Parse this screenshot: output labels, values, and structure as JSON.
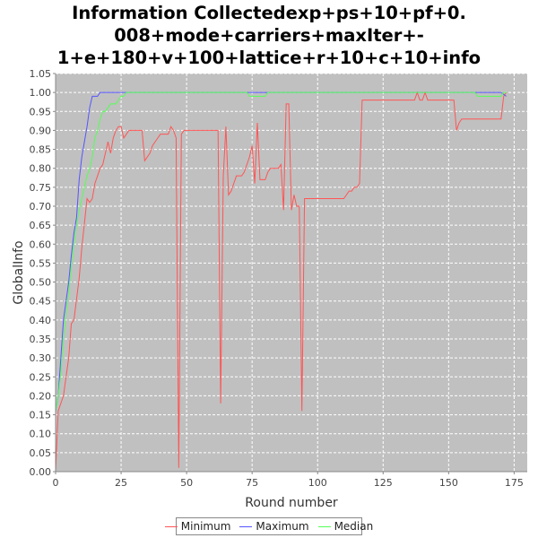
{
  "chart_data": {
    "type": "line",
    "title_lines": [
      "Information Collectedexp+ps+10+pf+0.",
      "008+mode+carriers+maxIter+-",
      "1+e+180+v+100+lattice+r+10+c+10+info"
    ],
    "xlabel": "Round number",
    "ylabel": "GlobalInfo",
    "xlim": [
      0,
      180
    ],
    "ylim": [
      0,
      1.05
    ],
    "x_ticks": [
      "0",
      "25",
      "50",
      "75",
      "100",
      "125",
      "150",
      "175"
    ],
    "y_ticks": [
      "0.00",
      "0.05",
      "0.10",
      "0.15",
      "0.20",
      "0.25",
      "0.30",
      "0.35",
      "0.40",
      "0.45",
      "0.50",
      "0.55",
      "0.60",
      "0.65",
      "0.70",
      "0.75",
      "0.80",
      "0.85",
      "0.90",
      "0.95",
      "1.00",
      "1.05"
    ],
    "grid": true,
    "legend_position": "bottom",
    "background": "#c0c0c0",
    "series": [
      {
        "name": "Minimum",
        "color": "#ff5555",
        "points": [
          [
            0,
            0.0
          ],
          [
            1,
            0.16
          ],
          [
            3,
            0.2
          ],
          [
            5,
            0.3
          ],
          [
            6,
            0.39
          ],
          [
            7,
            0.4
          ],
          [
            9,
            0.51
          ],
          [
            10,
            0.59
          ],
          [
            12,
            0.72
          ],
          [
            13,
            0.71
          ],
          [
            14,
            0.72
          ],
          [
            15,
            0.76
          ],
          [
            16,
            0.78
          ],
          [
            17,
            0.8
          ],
          [
            18,
            0.81
          ],
          [
            19,
            0.84
          ],
          [
            20,
            0.87
          ],
          [
            21,
            0.84
          ],
          [
            22,
            0.88
          ],
          [
            23,
            0.9
          ],
          [
            24,
            0.91
          ],
          [
            25,
            0.91
          ],
          [
            26,
            0.88
          ],
          [
            27,
            0.89
          ],
          [
            28,
            0.9
          ],
          [
            30,
            0.9
          ],
          [
            32,
            0.9
          ],
          [
            33,
            0.9
          ],
          [
            34,
            0.82
          ],
          [
            36,
            0.84
          ],
          [
            37,
            0.86
          ],
          [
            38,
            0.87
          ],
          [
            39,
            0.88
          ],
          [
            40,
            0.89
          ],
          [
            42,
            0.89
          ],
          [
            43,
            0.89
          ],
          [
            44,
            0.91
          ],
          [
            45,
            0.9
          ],
          [
            46,
            0.88
          ],
          [
            47,
            0.01
          ],
          [
            48,
            0.89
          ],
          [
            49,
            0.9
          ],
          [
            52,
            0.9
          ],
          [
            55,
            0.9
          ],
          [
            58,
            0.9
          ],
          [
            60,
            0.9
          ],
          [
            62,
            0.9
          ],
          [
            63,
            0.18
          ],
          [
            64,
            0.78
          ],
          [
            65,
            0.91
          ],
          [
            66,
            0.73
          ],
          [
            67,
            0.74
          ],
          [
            68,
            0.76
          ],
          [
            69,
            0.78
          ],
          [
            70,
            0.78
          ],
          [
            71,
            0.78
          ],
          [
            72,
            0.79
          ],
          [
            73,
            0.81
          ],
          [
            74,
            0.83
          ],
          [
            75,
            0.86
          ],
          [
            76,
            0.76
          ],
          [
            77,
            0.92
          ],
          [
            78,
            0.77
          ],
          [
            79,
            0.77
          ],
          [
            80,
            0.77
          ],
          [
            81,
            0.79
          ],
          [
            82,
            0.8
          ],
          [
            83,
            0.8
          ],
          [
            84,
            0.8
          ],
          [
            85,
            0.8
          ],
          [
            86,
            0.81
          ],
          [
            87,
            0.69
          ],
          [
            88,
            0.97
          ],
          [
            89,
            0.97
          ],
          [
            90,
            0.69
          ],
          [
            91,
            0.73
          ],
          [
            92,
            0.7
          ],
          [
            93,
            0.7
          ],
          [
            94,
            0.16
          ],
          [
            95,
            0.72
          ],
          [
            96,
            0.72
          ],
          [
            100,
            0.72
          ],
          [
            105,
            0.72
          ],
          [
            110,
            0.72
          ],
          [
            112,
            0.74
          ],
          [
            113,
            0.74
          ],
          [
            114,
            0.75
          ],
          [
            115,
            0.75
          ],
          [
            116,
            0.76
          ],
          [
            117,
            0.98
          ],
          [
            120,
            0.98
          ],
          [
            125,
            0.98
          ],
          [
            130,
            0.98
          ],
          [
            135,
            0.98
          ],
          [
            137,
            0.98
          ],
          [
            138,
            1.0
          ],
          [
            139,
            0.98
          ],
          [
            140,
            0.98
          ],
          [
            141,
            1.0
          ],
          [
            142,
            0.98
          ],
          [
            145,
            0.98
          ],
          [
            150,
            0.98
          ],
          [
            152,
            0.98
          ],
          [
            153,
            0.9
          ],
          [
            154,
            0.92
          ],
          [
            155,
            0.93
          ],
          [
            160,
            0.93
          ],
          [
            165,
            0.93
          ],
          [
            170,
            0.93
          ],
          [
            171,
            0.99
          ],
          [
            172,
            1.0
          ]
        ]
      },
      {
        "name": "Maximum",
        "color": "#5555ff",
        "points": [
          [
            0,
            0.16
          ],
          [
            1,
            0.2
          ],
          [
            2,
            0.3
          ],
          [
            3,
            0.4
          ],
          [
            4,
            0.45
          ],
          [
            5,
            0.5
          ],
          [
            6,
            0.57
          ],
          [
            7,
            0.63
          ],
          [
            8,
            0.67
          ],
          [
            9,
            0.77
          ],
          [
            10,
            0.83
          ],
          [
            11,
            0.87
          ],
          [
            12,
            0.91
          ],
          [
            13,
            0.96
          ],
          [
            14,
            0.99
          ],
          [
            15,
            0.99
          ],
          [
            16,
            0.99
          ],
          [
            17,
            1.0
          ],
          [
            20,
            1.0
          ],
          [
            40,
            1.0
          ],
          [
            60,
            1.0
          ],
          [
            80,
            1.0
          ],
          [
            100,
            1.0
          ],
          [
            120,
            1.0
          ],
          [
            140,
            1.0
          ],
          [
            160,
            1.0
          ],
          [
            170,
            1.0
          ],
          [
            172,
            0.99
          ]
        ]
      },
      {
        "name": "Median",
        "color": "#55ff55",
        "points": [
          [
            0,
            0.16
          ],
          [
            1,
            0.2
          ],
          [
            2,
            0.26
          ],
          [
            3,
            0.35
          ],
          [
            4,
            0.42
          ],
          [
            5,
            0.47
          ],
          [
            6,
            0.54
          ],
          [
            7,
            0.6
          ],
          [
            8,
            0.65
          ],
          [
            9,
            0.69
          ],
          [
            10,
            0.72
          ],
          [
            11,
            0.75
          ],
          [
            12,
            0.78
          ],
          [
            13,
            0.8
          ],
          [
            14,
            0.83
          ],
          [
            15,
            0.88
          ],
          [
            16,
            0.9
          ],
          [
            17,
            0.93
          ],
          [
            18,
            0.95
          ],
          [
            19,
            0.95
          ],
          [
            20,
            0.96
          ],
          [
            21,
            0.97
          ],
          [
            22,
            0.97
          ],
          [
            23,
            0.97
          ],
          [
            24,
            0.98
          ],
          [
            25,
            0.99
          ],
          [
            26,
            0.99
          ],
          [
            27,
            1.0
          ],
          [
            30,
            1.0
          ],
          [
            40,
            1.0
          ],
          [
            50,
            1.0
          ],
          [
            60,
            1.0
          ],
          [
            70,
            1.0
          ],
          [
            73,
            1.0
          ],
          [
            74,
            0.99
          ],
          [
            75,
            0.99
          ],
          [
            80,
            0.99
          ],
          [
            81,
            1.0
          ],
          [
            90,
            1.0
          ],
          [
            100,
            1.0
          ],
          [
            120,
            1.0
          ],
          [
            140,
            1.0
          ],
          [
            160,
            1.0
          ],
          [
            161,
            0.99
          ],
          [
            165,
            0.99
          ],
          [
            170,
            0.99
          ],
          [
            171,
            1.0
          ],
          [
            172,
            1.0
          ]
        ]
      }
    ]
  }
}
